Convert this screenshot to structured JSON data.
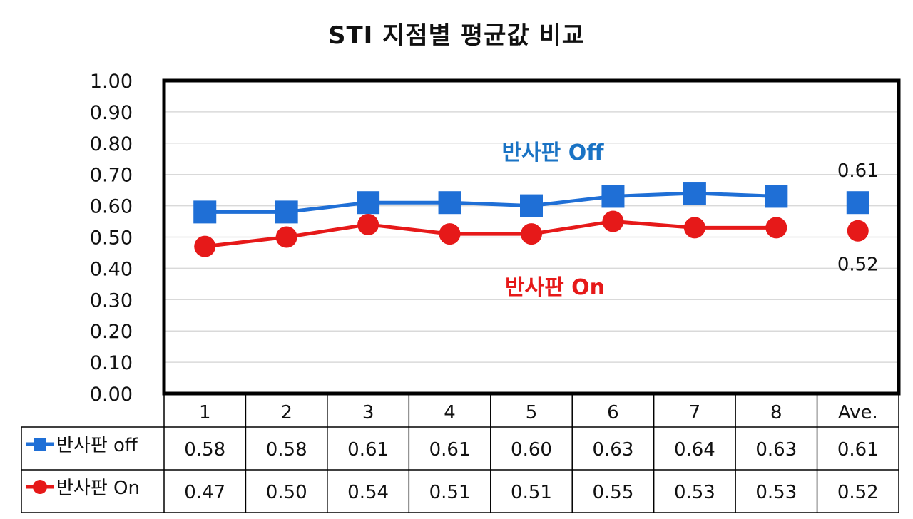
{
  "chart_data": {
    "type": "line",
    "title": "STI  지점별 평균값 비교",
    "categories": [
      "1",
      "2",
      "3",
      "4",
      "5",
      "6",
      "7",
      "8",
      "Ave."
    ],
    "ylim": [
      0,
      1
    ],
    "yticks": [
      "0.00",
      "0.10",
      "0.20",
      "0.30",
      "0.40",
      "0.50",
      "0.60",
      "0.70",
      "0.80",
      "0.90",
      "1.00"
    ],
    "grid": true,
    "series": [
      {
        "name": "반사판 off",
        "color": "#1f6fd6",
        "marker": "square",
        "values": [
          0.58,
          0.58,
          0.61,
          0.61,
          0.6,
          0.63,
          0.64,
          0.63,
          0.61
        ],
        "value_labels": [
          "0.58",
          "0.58",
          "0.61",
          "0.61",
          "0.60",
          "0.63",
          "0.64",
          "0.63",
          "0.61"
        ]
      },
      {
        "name": "반사판 On",
        "color": "#e61919",
        "marker": "circle",
        "values": [
          0.47,
          0.5,
          0.54,
          0.51,
          0.51,
          0.55,
          0.53,
          0.53,
          0.52
        ],
        "value_labels": [
          "0.47",
          "0.50",
          "0.54",
          "0.51",
          "0.51",
          "0.55",
          "0.53",
          "0.53",
          "0.52"
        ]
      }
    ],
    "annotations": [
      {
        "text": "반사판 Off",
        "color": "#1a73c4"
      },
      {
        "text": "반사판 On",
        "color": "#e61919"
      }
    ],
    "data_labels": [
      {
        "series": 0,
        "index": 8,
        "text": "0.61",
        "position": "above"
      },
      {
        "series": 1,
        "index": 8,
        "text": "0.52",
        "position": "below"
      }
    ],
    "legend": "data-table"
  }
}
